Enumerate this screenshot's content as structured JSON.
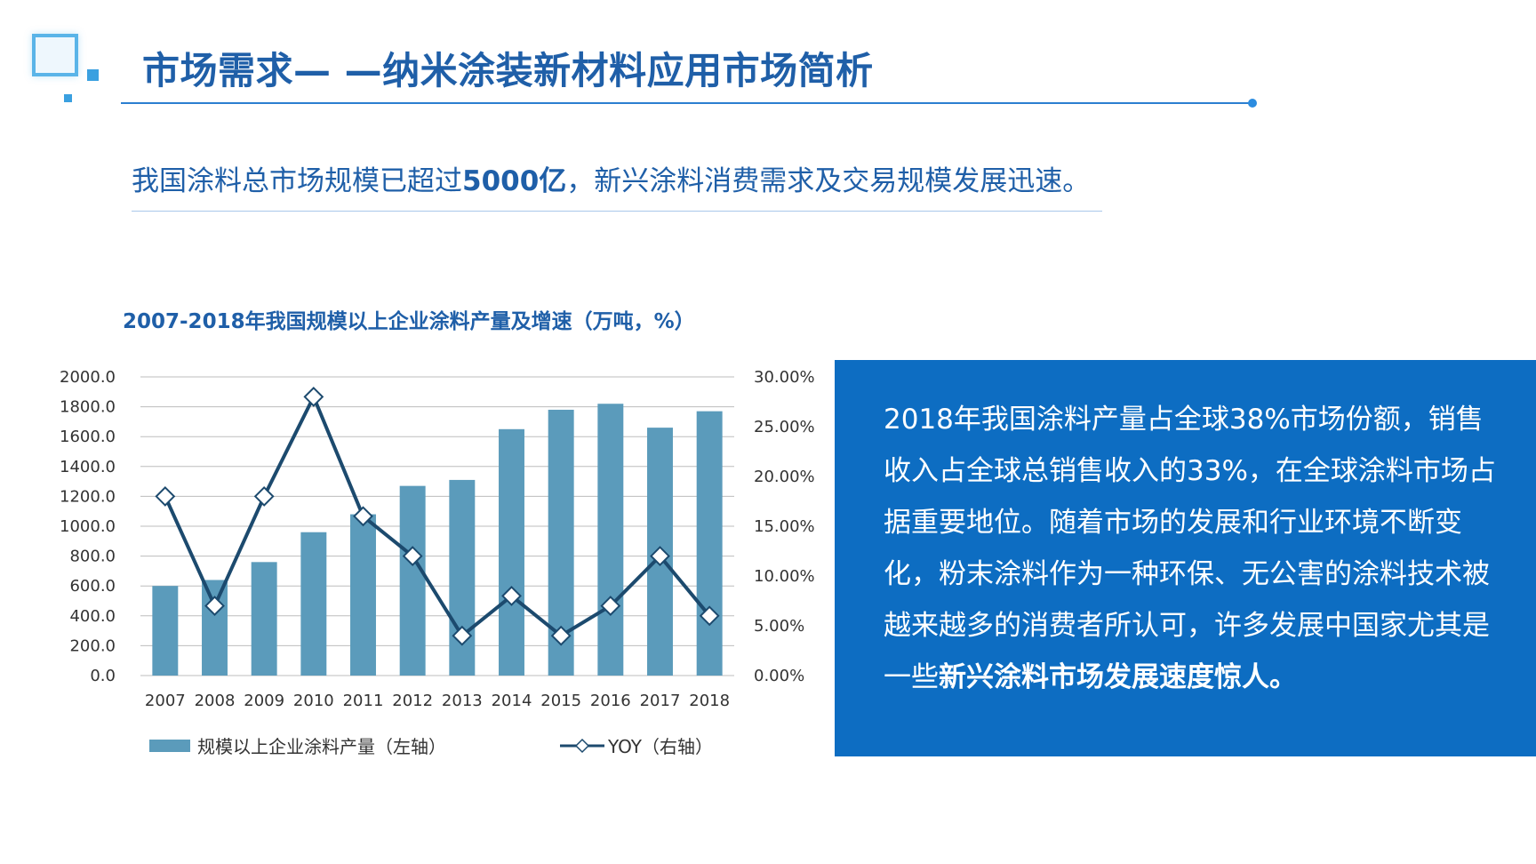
{
  "title": "市场需求— —纳米涂装新材料应用市场简析",
  "subtitle": {
    "before": "我国涂料总市场规模已超过",
    "bold": "5000亿",
    "after": "，新兴涂料消费需求及交易规模发展迅速。"
  },
  "panel": {
    "text": "2018年我国涂料产量占全球38%市场份额，销售收入占全球总销售收入的33%，在全球涂料市场占据重要地位。随着市场的发展和行业环境不断变化，粉末涂料作为一种环保、无公害的涂料技术被越来越多的消费者所认可，许多发展中国家尤其是一些",
    "bold": "新兴涂料市场发展速度惊人。"
  },
  "colors": {
    "accent": "#1f5fa8",
    "panel_bg": "#0d6dc2",
    "bar": "#5b9bbb",
    "line": "#1c4a6e"
  },
  "chart_data": {
    "type": "bar",
    "title": "2007-2018年我国规模以上企业涂料产量及增速（万吨，%）",
    "categories": [
      "2007",
      "2008",
      "2009",
      "2010",
      "2011",
      "2012",
      "2013",
      "2014",
      "2015",
      "2016",
      "2017",
      "2018"
    ],
    "left_ticks": [
      "2000.0",
      "1800.0",
      "1600.0",
      "1400.0",
      "1200.0",
      "1000.0",
      "800.0",
      "600.0",
      "400.0",
      "200.0",
      "0.0"
    ],
    "right_ticks": [
      "30.00%",
      "25.00%",
      "20.00%",
      "15.00%",
      "10.00%",
      "5.00%",
      "0.00%"
    ],
    "ylim_left": [
      0,
      2000
    ],
    "ylim_right": [
      0,
      30
    ],
    "grid": true,
    "legend_position": "bottom",
    "series": [
      {
        "name": "规模以上企业涂料产量（左轴）",
        "type": "bar",
        "axis": "left",
        "values": [
          600,
          640,
          760,
          960,
          1080,
          1270,
          1310,
          1650,
          1780,
          1820,
          1660,
          1770
        ]
      },
      {
        "name": "YOY（右轴）",
        "type": "line",
        "axis": "right",
        "values": [
          18,
          7,
          18,
          28,
          16,
          12,
          4,
          8,
          4,
          7,
          12,
          6
        ]
      }
    ]
  }
}
